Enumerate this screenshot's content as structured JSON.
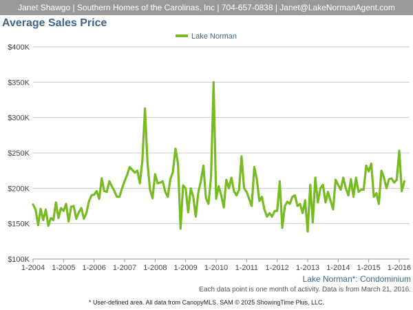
{
  "header": {
    "contact": "Janet Shawgo | Southern Homes of the Carolinas, Inc | 704-657-0838 | Janet@LakeNormanAgent.com"
  },
  "title": "Average Sales Price",
  "region_label": "Lake Norman*: Condominium",
  "note": "Each data point is one month of activity. Data is from March 21, 2016.",
  "footer": "* User-defined area. All data from CanopyMLS. SAM © 2025 ShowingTime Plus, LLC.",
  "colors": {
    "series": "#77bb22",
    "grid": "#c8c8c8",
    "title": "#3f6488",
    "topbar": "#9a9a9a"
  },
  "chart_data": {
    "type": "line",
    "title": "Average Sales Price",
    "legend": {
      "position": "top-center"
    },
    "grid": true,
    "ylim": [
      100000,
      400000
    ],
    "yticks": [
      100000,
      150000,
      200000,
      250000,
      300000,
      350000,
      400000
    ],
    "ytick_labels": [
      "$100K",
      "$150K",
      "$200K",
      "$250K",
      "$300K",
      "$350K",
      "$400K"
    ],
    "xtick_labels": [
      "1-2004",
      "1-2005",
      "1-2006",
      "1-2007",
      "1-2008",
      "1-2009",
      "1-2010",
      "1-2011",
      "1-2012",
      "1-2013",
      "1-2014",
      "1-2015",
      "1-2016"
    ],
    "x_start": "2004-01",
    "x_end": "2016-02",
    "series": [
      {
        "name": "Lake Norman",
        "color": "#77bb22",
        "values": [
          177000,
          170000,
          148000,
          171000,
          155000,
          170000,
          147000,
          158000,
          155000,
          180000,
          158000,
          172000,
          168000,
          178000,
          153000,
          174000,
          175000,
          157000,
          166000,
          172000,
          157000,
          165000,
          182000,
          190000,
          191000,
          196000,
          185000,
          214000,
          196000,
          195000,
          210000,
          203000,
          196000,
          188000,
          188000,
          200000,
          210000,
          219000,
          230000,
          226000,
          222000,
          225000,
          207000,
          240000,
          313000,
          236000,
          198000,
          186000,
          220000,
          207000,
          208000,
          210000,
          195000,
          188000,
          213000,
          223000,
          256000,
          235000,
          143000,
          204000,
          200000,
          166000,
          200000,
          188000,
          160000,
          194000,
          210000,
          232000,
          186000,
          178000,
          216000,
          350000,
          185000,
          203000,
          190000,
          173000,
          212000,
          200000,
          215000,
          196000,
          190000,
          198000,
          245000,
          200000,
          195000,
          185000,
          175000,
          230000,
          213000,
          182000,
          188000,
          170000,
          160000,
          165000,
          160000,
          168000,
          168000,
          210000,
          144000,
          175000,
          181000,
          178000,
          188000,
          190000,
          175000,
          178000,
          165000,
          183000,
          139000,
          205000,
          152000,
          215000,
          180000,
          200000,
          205000,
          180000,
          195000,
          182000,
          170000,
          212000,
          205000,
          198000,
          215000,
          200000,
          190000,
          213000,
          188000,
          215000,
          195000,
          198000,
          198000,
          232000,
          224000,
          235000,
          188000,
          193000,
          178000,
          225000,
          215000,
          200000,
          213000,
          214000,
          208000,
          212000,
          253000,
          196000,
          210000
        ]
      }
    ]
  }
}
